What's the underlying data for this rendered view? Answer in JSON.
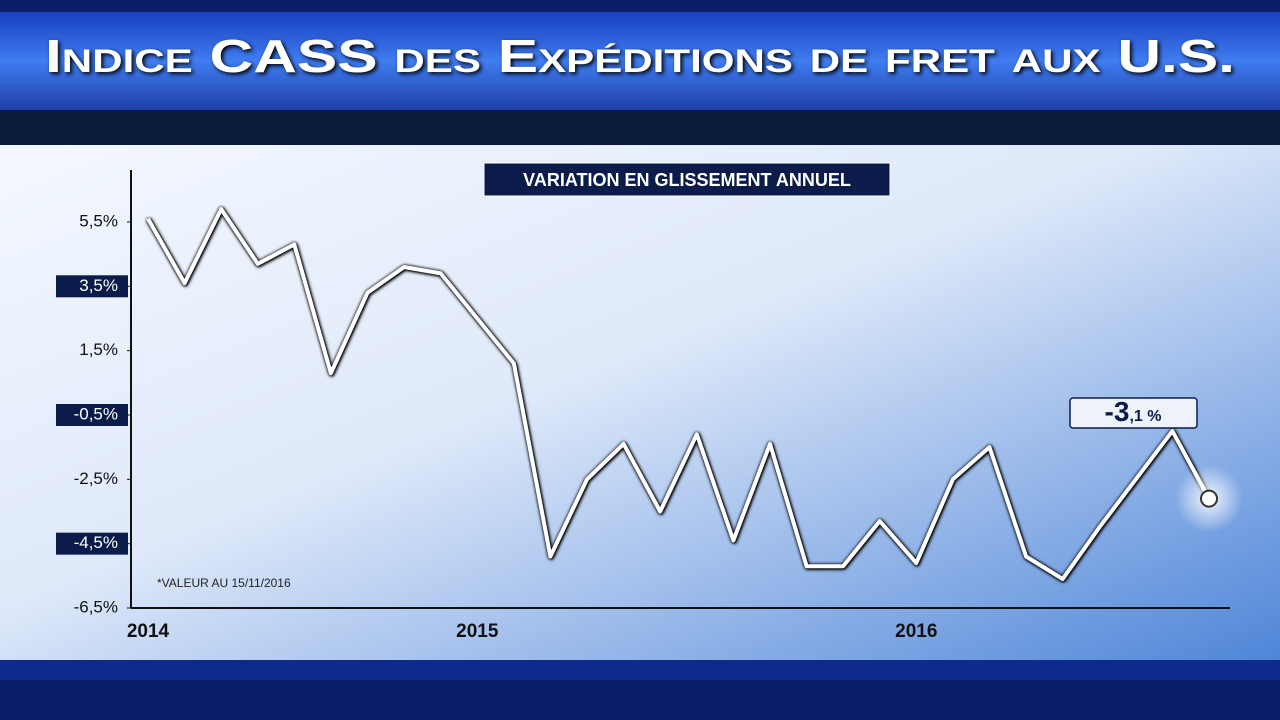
{
  "chart_data": {
    "type": "line",
    "title": "Indice CASS des Expéditions de fret aux U.S.",
    "subtitle": "VARIATION EN GLISSEMENT ANNUEL",
    "footnote": "*VALEUR AU 15/11/2016",
    "categories": [
      "2014",
      null,
      null,
      null,
      null,
      null,
      null,
      null,
      null,
      "2015",
      null,
      null,
      null,
      null,
      null,
      null,
      null,
      null,
      null,
      null,
      null,
      "2016",
      null,
      null,
      null,
      null,
      null,
      null,
      null,
      null
    ],
    "series": [
      {
        "color": "#ffffff",
        "values": [
          5.6,
          3.6,
          5.9,
          4.2,
          4.8,
          0.8,
          3.3,
          4.1,
          3.9,
          2.5,
          1.1,
          -4.9,
          -2.5,
          -1.4,
          -3.5,
          -1.1,
          -4.4,
          -1.4,
          -5.2,
          -5.2,
          -3.8,
          -5.1,
          -2.5,
          -1.5,
          -4.9,
          -5.6,
          -4.0,
          -2.5,
          -1.0,
          -3.1
        ]
      }
    ],
    "annotation": {
      "main": "-3",
      "decimal": ",1 %"
    },
    "ylim": [
      -6.5,
      6.2
    ],
    "yticks": [
      {
        "value": 5.5,
        "label": "5,5%"
      },
      {
        "value": 3.5,
        "label": "3,5%"
      },
      {
        "value": 1.5,
        "label": "1,5%"
      },
      {
        "value": -0.5,
        "label": "-0,5%"
      },
      {
        "value": -2.5,
        "label": "-2,5%"
      },
      {
        "value": -4.5,
        "label": "-4,5%"
      },
      {
        "value": -6.5,
        "label": "-6,5%"
      }
    ]
  }
}
